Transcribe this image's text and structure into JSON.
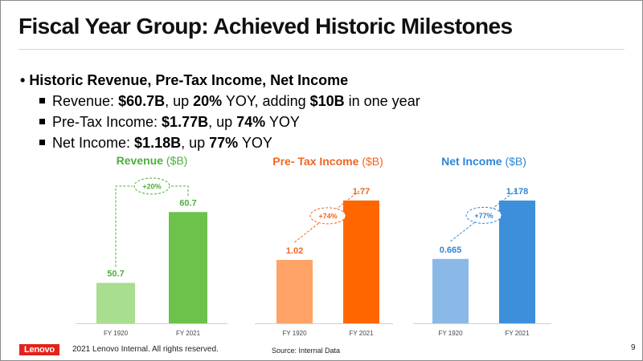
{
  "title": "Fiscal Year Group: Achieved Historic Milestones",
  "bullets": {
    "heading": "Historic Revenue, Pre-Tax Income, Net Income",
    "items": [
      {
        "parts": [
          {
            "t": "Revenue: "
          },
          {
            "t": "$60.7B",
            "b": true
          },
          {
            "t": ", up "
          },
          {
            "t": "20%",
            "b": true
          },
          {
            "t": " YOY, adding "
          },
          {
            "t": "$10B",
            "b": true
          },
          {
            "t": " in one year"
          }
        ]
      },
      {
        "parts": [
          {
            "t": "Pre-Tax Income: "
          },
          {
            "t": "$1.77B",
            "b": true
          },
          {
            "t": ", up "
          },
          {
            "t": "74%",
            "b": true
          },
          {
            "t": " YOY"
          }
        ]
      },
      {
        "parts": [
          {
            "t": "Net Income: "
          },
          {
            "t": "$1.18B",
            "b": true
          },
          {
            "t": ", up "
          },
          {
            "t": "77%",
            "b": true
          },
          {
            "t": " YOY"
          }
        ]
      }
    ]
  },
  "chart_data": [
    {
      "type": "bar",
      "title": "Revenue",
      "unit": "($B)",
      "categories": [
        "FY 1920",
        "FY 2021"
      ],
      "values": [
        50.7,
        60.7
      ],
      "value_labels": [
        "50.7",
        "60.7"
      ],
      "ylim": [
        45,
        63
      ],
      "colors": [
        "#a9dd8f",
        "#6cc24a"
      ],
      "title_color": "#4caf3a",
      "growth_label": "+20%",
      "growth_color": "#4caf3a"
    },
    {
      "type": "bar",
      "title": "Pre- Tax Income",
      "unit": "($B)",
      "categories": [
        "FY 1920",
        "FY 2021"
      ],
      "values": [
        1.02,
        1.77
      ],
      "value_labels": [
        "1.02",
        "1.77"
      ],
      "ylim": [
        0.22,
        1.83
      ],
      "colors": [
        "#ffa366",
        "#ff6600"
      ],
      "title_color": "#f26522",
      "growth_label": "+74%",
      "growth_color": "#f26522"
    },
    {
      "type": "bar",
      "title": "Net Income",
      "unit": "($B)",
      "categories": [
        "FY 1920",
        "FY 2021"
      ],
      "values": [
        0.665,
        1.178
      ],
      "value_labels": [
        "0.665",
        "1.178"
      ],
      "ylim": [
        0.1,
        1.22
      ],
      "colors": [
        "#8ab9e8",
        "#3d8fdc"
      ],
      "title_color": "#2f86d6",
      "growth_label": "+77%",
      "growth_color": "#2f86d6"
    }
  ],
  "footer": {
    "logo": "Lenovo",
    "copyright": "2021 Lenovo Internal. All rights reserved.",
    "source": "Source: Internal Data",
    "page": "9"
  },
  "colors": {
    "logo_red": "#e2231a"
  }
}
